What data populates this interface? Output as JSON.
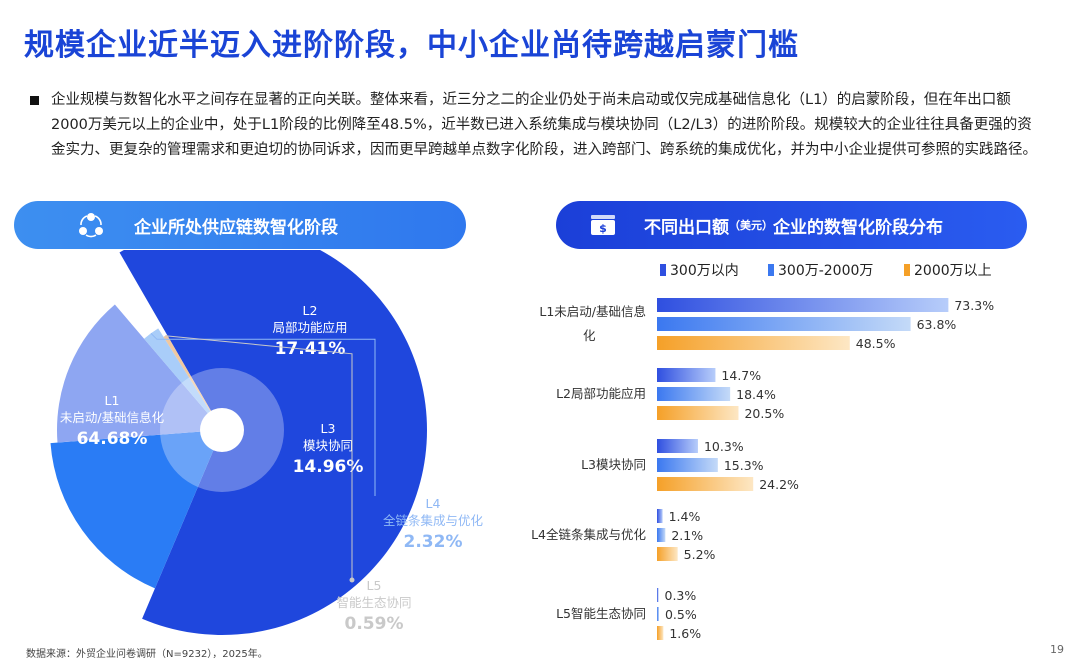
{
  "page": {
    "title": "规模企业近半迈入进阶阶段，中小企业尚待跨越启蒙门槛",
    "intro": "企业规模与数智化水平之间存在显著的正向关联。整体来看，近三分之二的企业仍处于尚未启动或仅完成基础信息化（L1）的启蒙阶段，但在年出口额2000万美元以上的企业中，处于L1阶段的比例降至48.5%，近半数已进入系统集成与模块协同（L2/L3）的进阶阶段。规模较大的企业往往具备更强的资金实力、更复杂的管理需求和更迫切的协同诉求，因而更早跨越单点数字化阶段，进入跨部门、跨系统的集成优化，并为中小企业提供可参照的实践路径。",
    "left_header": "企业所处供应链数智化阶段",
    "right_header_a": "不同出口额",
    "right_header_unit": "（美元）",
    "right_header_b": "企业的数智化阶段分布",
    "source": "数据来源：外贸企业问卷调研（N=9232），2025年。",
    "page_number": "19"
  },
  "colors": {
    "title": "#1a44d6",
    "l1": "#1f47dd",
    "l2": "#2a7cf5",
    "l3": "#8ea6f2",
    "l4": "#a9cdf9",
    "l5": "#f0c8a0",
    "bar_small": "#2f4fe0",
    "bar_mid": "#3b78f0",
    "bar_large": "#f5a028"
  },
  "chart_data": [
    {
      "type": "pie",
      "title": "企业所处供应链数智化阶段",
      "slices": [
        {
          "code": "L1",
          "name": "未启动/基础信息化",
          "value": 64.68,
          "label": "64.68%"
        },
        {
          "code": "L2",
          "name": "局部功能应用",
          "value": 17.41,
          "label": "17.41%"
        },
        {
          "code": "L3",
          "name": "模块协同",
          "value": 14.96,
          "label": "14.96%"
        },
        {
          "code": "L4",
          "name": "全链条集成与优化",
          "value": 2.32,
          "label": "2.32%"
        },
        {
          "code": "L5",
          "name": "智能生态协同",
          "value": 0.59,
          "label": "0.59%"
        }
      ]
    },
    {
      "type": "bar",
      "orientation": "horizontal",
      "title": "不同出口额（美元）企业的数智化阶段分布",
      "categories": [
        "L1未启动/基础信息化",
        "L2局部功能应用",
        "L3模块协同",
        "L4全链条集成与优化",
        "L5智能生态协同"
      ],
      "category_lines": [
        [
          "L1未启动/基础信息",
          "化"
        ],
        [
          "L2局部功能应用"
        ],
        [
          "L3模块协同"
        ],
        [
          "L4全链条集成与优化"
        ],
        [
          "L5智能生态协同"
        ]
      ],
      "series": [
        {
          "name": "300万以内",
          "values": [
            73.3,
            14.7,
            10.3,
            1.4,
            0.3
          ],
          "labels": [
            "73.3%",
            "14.7%",
            "10.3%",
            "1.4%",
            "0.3%"
          ]
        },
        {
          "name": "300万-2000万",
          "values": [
            63.8,
            18.4,
            15.3,
            2.1,
            0.5
          ],
          "labels": [
            "63.8%",
            "18.4%",
            "15.3%",
            "2.1%",
            "0.5%"
          ]
        },
        {
          "name": "2000万以上",
          "values": [
            48.5,
            20.5,
            24.2,
            5.2,
            1.6
          ],
          "labels": [
            "48.5%",
            "20.5%",
            "24.2%",
            "5.2%",
            "1.6%"
          ]
        }
      ],
      "xlim": [
        0,
        80
      ],
      "legend": "top"
    }
  ]
}
